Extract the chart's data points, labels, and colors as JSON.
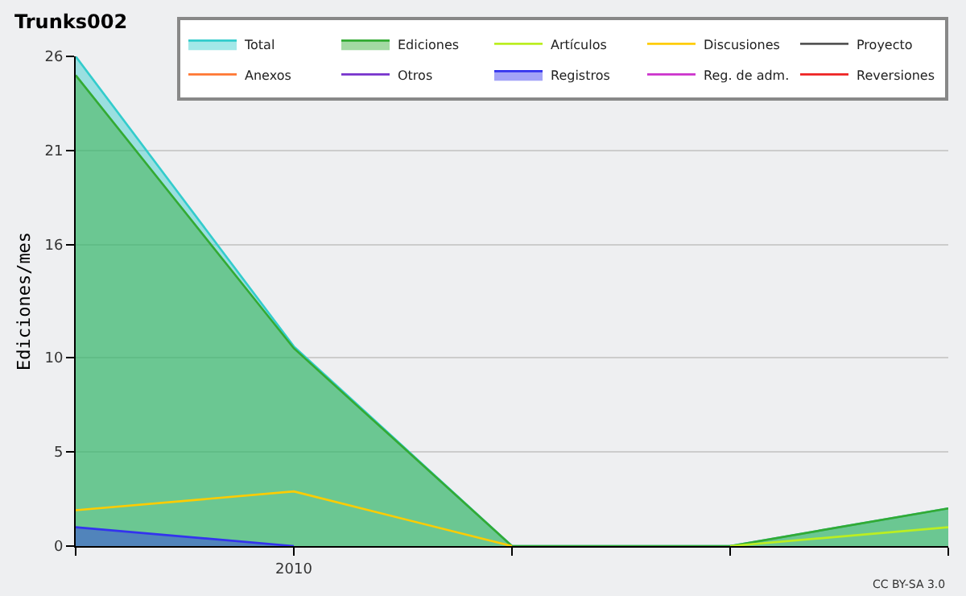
{
  "chart_data": {
    "type": "line",
    "title": "Trunks002",
    "ylabel": "Ediciones/mes",
    "categories": [
      null,
      "2010",
      null,
      null,
      null
    ],
    "series": [
      {
        "name": "Total",
        "type": "area",
        "color": "#33cccc",
        "values": [
          26,
          10.6,
          0,
          0,
          2
        ]
      },
      {
        "name": "Ediciones",
        "type": "area",
        "color": "#33aa33",
        "values": [
          25,
          10.5,
          0,
          0,
          2
        ]
      },
      {
        "name": "Artículos",
        "color": "#bbee22",
        "values": [
          null,
          null,
          null,
          0,
          1
        ]
      },
      {
        "name": "Discusiones",
        "color": "#ffcc00",
        "values": [
          1.9,
          2.9,
          0,
          null,
          null
        ]
      },
      {
        "name": "Proyecto",
        "color": "#555555",
        "values": [
          null,
          null,
          null,
          null,
          null
        ]
      },
      {
        "name": "Anexos",
        "color": "#ff7733",
        "values": [
          null,
          null,
          null,
          null,
          null
        ]
      },
      {
        "name": "Otros",
        "color": "#7733cc",
        "values": [
          null,
          null,
          null,
          null,
          null
        ]
      },
      {
        "name": "Registros",
        "type": "area",
        "color": "#3333ee",
        "values": [
          1,
          0,
          null,
          null,
          null
        ]
      },
      {
        "name": "Reg. de adm.",
        "color": "#cc33cc",
        "values": [
          null,
          null,
          null,
          null,
          null
        ]
      },
      {
        "name": "Reversiones",
        "color": "#ee2222",
        "values": [
          null,
          null,
          null,
          null,
          null
        ]
      }
    ],
    "ylim": [
      0,
      26
    ],
    "yticks": [
      0,
      5,
      10,
      16,
      21,
      26
    ],
    "grid": "y",
    "legend": "top right",
    "annotations": [
      "CC BY-SA 3.0"
    ]
  }
}
